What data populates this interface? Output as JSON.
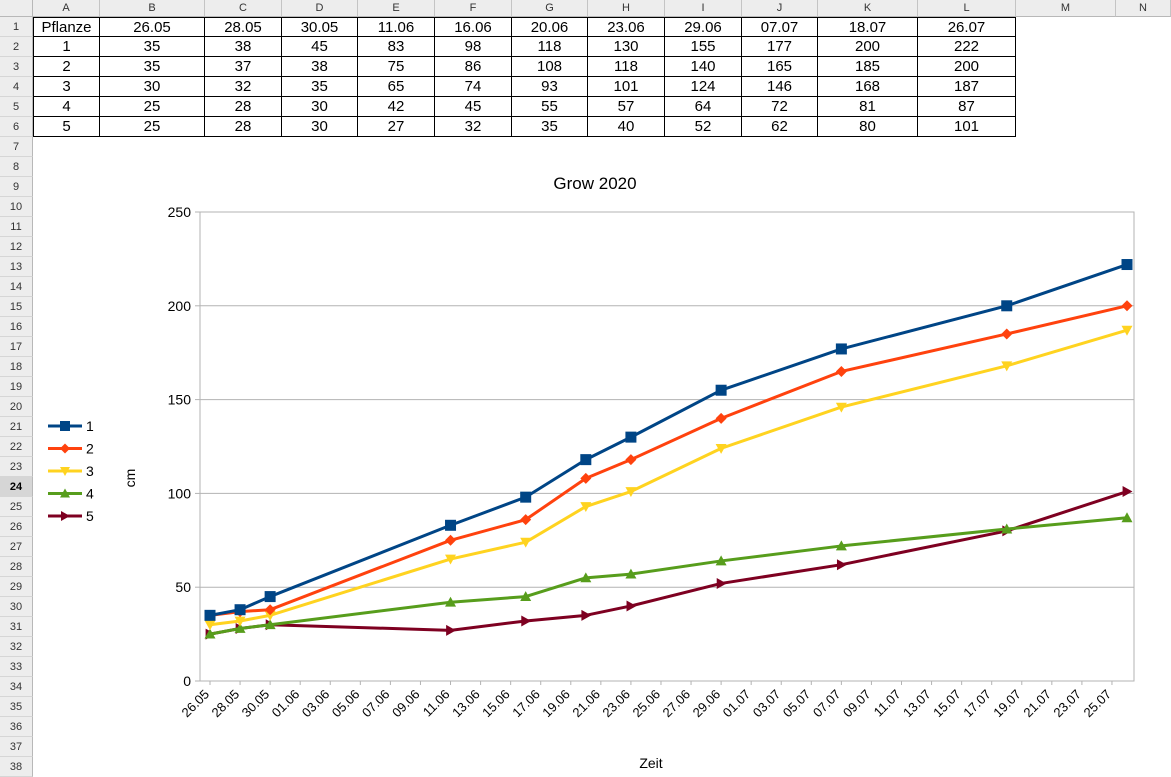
{
  "sheet": {
    "columns": [
      "A",
      "B",
      "C",
      "D",
      "E",
      "F",
      "G",
      "H",
      "I",
      "J",
      "K",
      "L",
      "M",
      "N"
    ],
    "rows": [
      "1",
      "2",
      "3",
      "4",
      "5",
      "6",
      "7",
      "8",
      "9",
      "10",
      "11",
      "12",
      "13",
      "14",
      "15",
      "16",
      "17",
      "18",
      "19",
      "20",
      "21",
      "22",
      "23",
      "24",
      "25",
      "26",
      "27",
      "28",
      "29",
      "30",
      "31",
      "32",
      "33",
      "34",
      "35",
      "36",
      "37",
      "38"
    ],
    "active_row": "24",
    "table": [
      [
        "Pflanze",
        "26.05",
        "28.05",
        "30.05",
        "11.06",
        "16.06",
        "20.06",
        "23.06",
        "29.06",
        "07.07",
        "18.07",
        "26.07"
      ],
      [
        "1",
        "35",
        "38",
        "45",
        "83",
        "98",
        "118",
        "130",
        "155",
        "177",
        "200",
        "222"
      ],
      [
        "2",
        "35",
        "37",
        "38",
        "75",
        "86",
        "108",
        "118",
        "140",
        "165",
        "185",
        "200"
      ],
      [
        "3",
        "30",
        "32",
        "35",
        "65",
        "74",
        "93",
        "101",
        "124",
        "146",
        "168",
        "187"
      ],
      [
        "4",
        "25",
        "28",
        "30",
        "42",
        "45",
        "55",
        "57",
        "64",
        "72",
        "81",
        "87"
      ],
      [
        "5",
        "25",
        "28",
        "30",
        "27",
        "32",
        "35",
        "40",
        "52",
        "62",
        "80",
        "101"
      ]
    ]
  },
  "chart_data": {
    "type": "line",
    "title": "Grow 2020",
    "xlabel": "Zeit",
    "ylabel": "cm",
    "ylim": [
      0,
      250
    ],
    "yticks": [
      "0",
      "50",
      "100",
      "150",
      "200",
      "250"
    ],
    "xticks": [
      "26.05",
      "28.05",
      "30.05",
      "01.06",
      "03.06",
      "05.06",
      "07.06",
      "09.06",
      "11.06",
      "13.06",
      "15.06",
      "17.06",
      "19.06",
      "21.06",
      "23.06",
      "25.06",
      "27.06",
      "29.06",
      "01.07",
      "03.07",
      "05.07",
      "07.07",
      "09.07",
      "11.07",
      "13.07",
      "15.07",
      "17.07",
      "19.07",
      "21.07",
      "23.07",
      "25.07"
    ],
    "x_days": [
      0,
      2,
      4,
      16,
      21,
      25,
      28,
      34,
      42,
      53,
      61
    ],
    "grid": true,
    "legend_position": "left",
    "series": [
      {
        "name": "1",
        "color": "#004586",
        "marker": "square",
        "values": [
          35,
          38,
          45,
          83,
          98,
          118,
          130,
          155,
          177,
          200,
          222
        ]
      },
      {
        "name": "2",
        "color": "#ff420e",
        "marker": "diamond",
        "values": [
          35,
          37,
          38,
          75,
          86,
          108,
          118,
          140,
          165,
          185,
          200
        ]
      },
      {
        "name": "3",
        "color": "#ffd320",
        "marker": "triangle-down",
        "values": [
          30,
          32,
          35,
          65,
          74,
          93,
          101,
          124,
          146,
          168,
          187
        ]
      },
      {
        "name": "4",
        "color": "#579d1c",
        "marker": "triangle-up",
        "values": [
          25,
          28,
          30,
          42,
          45,
          55,
          57,
          64,
          72,
          81,
          87
        ]
      },
      {
        "name": "5",
        "color": "#7e0021",
        "marker": "triangle-right",
        "values": [
          25,
          28,
          30,
          27,
          32,
          35,
          40,
          52,
          62,
          80,
          101
        ]
      }
    ]
  }
}
